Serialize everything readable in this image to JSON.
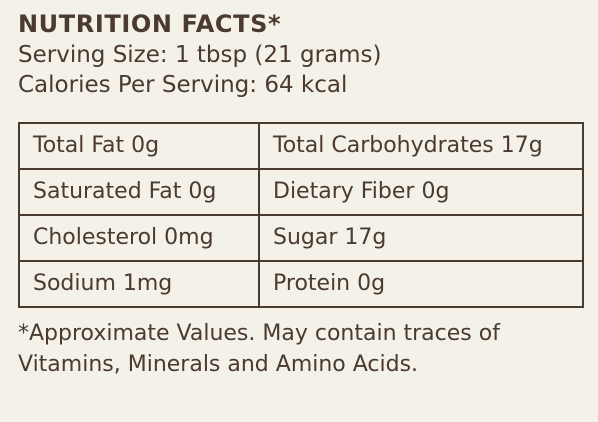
{
  "header": {
    "title": "NUTRITION FACTS*",
    "serving_size": "Serving Size: 1 tbsp (21 grams)",
    "calories": "Calories Per Serving: 64 kcal"
  },
  "table": {
    "rows": [
      {
        "left": "Total Fat 0g",
        "right": "Total Carbohydrates 17g"
      },
      {
        "left": "Saturated Fat 0g",
        "right": "Dietary Fiber 0g"
      },
      {
        "left": "Cholesterol 0mg",
        "right": "Sugar 17g"
      },
      {
        "left": "Sodium 1mg",
        "right": "Protein 0g"
      }
    ]
  },
  "footnote": {
    "line1": "*Approximate Values. May contain traces of",
    "line2": "Vitamins, Minerals and Amino Acids."
  }
}
